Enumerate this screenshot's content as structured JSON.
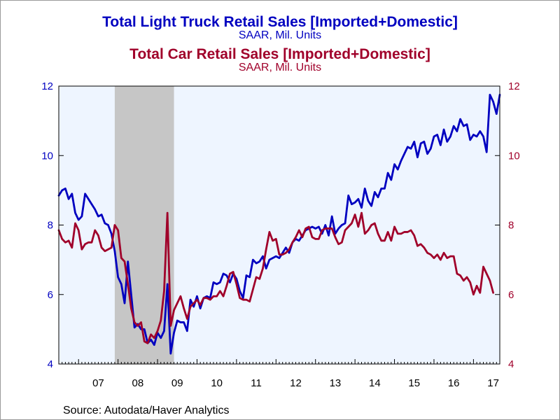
{
  "colors": {
    "truck": "#0000c0",
    "car": "#a0002a",
    "plot_background": "#eef5ff",
    "recession_shade": "#c6c6c6"
  },
  "titles": {
    "truck_title": "Total Light Truck Retail Sales [Imported+Domestic]",
    "truck_subtitle": "SAAR, Mil. Units",
    "car_title": "Total Car Retail Sales [Imported+Domestic]",
    "car_subtitle": "SAAR, Mil. Units"
  },
  "source": "Source:  Autodata/Haver Analytics",
  "chart_data": {
    "type": "line",
    "frequency": "monthly",
    "x_start": "2006-07",
    "x_end": "2017-09",
    "x_tick_labels": [
      "07",
      "08",
      "09",
      "10",
      "11",
      "12",
      "13",
      "14",
      "15",
      "16",
      "17"
    ],
    "ylim_left": [
      4,
      12
    ],
    "ylim_right": [
      4,
      12
    ],
    "yticks_left": [
      "4",
      "6",
      "8",
      "10",
      "12"
    ],
    "yticks_right": [
      "4",
      "6",
      "8",
      "10",
      "12"
    ],
    "shaded_period": {
      "start": "2007-12",
      "end": "2009-06"
    },
    "series": [
      {
        "key": "truck",
        "axis": "left",
        "values": [
          8.85,
          9.0,
          9.05,
          8.75,
          8.9,
          8.35,
          8.15,
          8.25,
          8.9,
          8.75,
          8.6,
          8.45,
          8.25,
          8.3,
          8.05,
          8.0,
          7.75,
          7.25,
          6.5,
          6.3,
          5.75,
          6.95,
          6.0,
          5.05,
          5.15,
          5.0,
          5.0,
          4.6,
          4.7,
          4.55,
          4.9,
          4.75,
          4.95,
          6.3,
          4.3,
          4.9,
          5.25,
          5.2,
          5.2,
          4.95,
          5.85,
          5.65,
          5.95,
          5.6,
          5.9,
          5.95,
          5.9,
          6.35,
          6.3,
          6.35,
          6.6,
          6.55,
          6.35,
          6.6,
          6.45,
          6.1,
          5.9,
          6.55,
          6.5,
          7.0,
          6.9,
          6.95,
          7.1,
          6.75,
          7.0,
          7.05,
          7.1,
          7.05,
          7.2,
          7.35,
          7.2,
          7.5,
          7.6,
          7.55,
          7.7,
          7.85,
          7.9,
          7.95,
          7.9,
          7.95,
          7.75,
          8.0,
          7.7,
          8.25,
          7.75,
          7.9,
          8.0,
          8.05,
          8.85,
          8.6,
          8.65,
          8.75,
          8.5,
          9.05,
          8.7,
          8.55,
          8.95,
          8.8,
          9.05,
          9.05,
          9.5,
          9.3,
          9.75,
          9.6,
          9.85,
          10.05,
          10.25,
          10.2,
          10.4,
          9.95,
          10.35,
          10.4,
          10.05,
          10.2,
          10.55,
          10.6,
          10.3,
          10.75,
          10.4,
          10.55,
          10.85,
          10.7,
          11.05,
          10.85,
          10.9,
          10.45,
          10.6,
          10.55,
          10.7,
          10.55,
          10.1,
          11.75,
          11.55,
          11.2,
          11.75
        ]
      },
      {
        "key": "car",
        "axis": "right",
        "values": [
          7.85,
          7.6,
          7.5,
          7.55,
          7.35,
          8.05,
          7.85,
          7.3,
          7.45,
          7.5,
          7.5,
          7.85,
          7.7,
          7.35,
          7.25,
          7.3,
          7.35,
          8.0,
          7.85,
          7.05,
          6.95,
          6.3,
          5.6,
          5.2,
          5.1,
          5.2,
          4.65,
          4.6,
          4.85,
          4.75,
          4.95,
          5.25,
          6.1,
          8.35,
          5.1,
          5.55,
          5.75,
          5.95,
          5.6,
          5.3,
          5.65,
          5.75,
          5.85,
          5.7,
          5.9,
          5.9,
          5.85,
          5.95,
          5.95,
          6.1,
          5.95,
          6.25,
          6.6,
          6.65,
          6.3,
          5.9,
          5.85,
          5.85,
          5.8,
          6.15,
          6.5,
          6.45,
          6.75,
          7.3,
          7.8,
          7.55,
          7.6,
          7.15,
          7.15,
          7.2,
          7.3,
          7.5,
          7.65,
          7.85,
          7.65,
          7.9,
          7.95,
          7.65,
          7.6,
          7.6,
          7.85,
          7.9,
          7.9,
          7.9,
          7.65,
          7.45,
          7.5,
          7.85,
          7.95,
          8.05,
          8.3,
          7.95,
          8.35,
          7.75,
          7.85,
          8.0,
          8.05,
          7.75,
          7.55,
          7.55,
          7.8,
          7.55,
          7.95,
          7.75,
          7.75,
          7.8,
          7.8,
          7.85,
          7.7,
          7.4,
          7.45,
          7.35,
          7.2,
          7.15,
          7.05,
          7.15,
          7.0,
          7.2,
          7.05,
          7.1,
          7.1,
          6.6,
          6.55,
          6.4,
          6.5,
          6.35,
          6.0,
          6.25,
          6.05,
          6.8,
          6.6,
          6.4,
          6.05
        ]
      }
    ]
  }
}
